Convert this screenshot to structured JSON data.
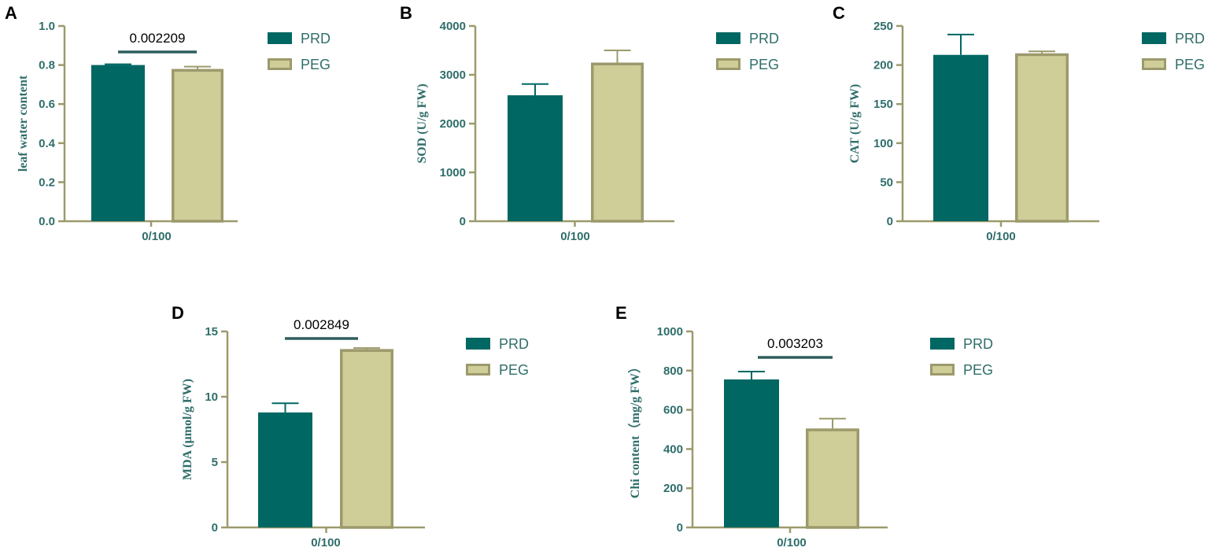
{
  "colors": {
    "axis": "#9c9a6c",
    "text": "#2f6e6a",
    "prd_fill": "#006763",
    "peg_fill": "#cfcd98",
    "peg_stroke": "#9c9a6c",
    "bracket": "#2f5f5c"
  },
  "chart_data": [
    {
      "panel": "A",
      "type": "bar",
      "ylabel": "leaf water content",
      "categories": [
        "0/100"
      ],
      "ylim": [
        0,
        1.0
      ],
      "yticks": [
        "0.0",
        "0.2",
        "0.4",
        "0.6",
        "0.8",
        "1.0"
      ],
      "series": [
        {
          "name": "PRD",
          "values": [
            0.8
          ],
          "errors": [
            0.004
          ]
        },
        {
          "name": "PEG",
          "values": [
            0.78
          ],
          "errors": [
            0.012
          ]
        }
      ],
      "significance": "0.002209",
      "legend": [
        "PRD",
        "PEG"
      ]
    },
    {
      "panel": "B",
      "type": "bar",
      "ylabel": "SOD (U/g FW)",
      "categories": [
        "0/100"
      ],
      "ylim": [
        0,
        4000
      ],
      "yticks": [
        "0",
        "1000",
        "2000",
        "3000",
        "4000"
      ],
      "series": [
        {
          "name": "PRD",
          "values": [
            2580
          ],
          "errors": [
            230
          ]
        },
        {
          "name": "PEG",
          "values": [
            3250
          ],
          "errors": [
            250
          ]
        }
      ],
      "significance": "",
      "legend": [
        "PRD",
        "PEG"
      ]
    },
    {
      "panel": "C",
      "type": "bar",
      "ylabel": "CAT (U/g FW)",
      "categories": [
        "0/100"
      ],
      "ylim": [
        0,
        250
      ],
      "yticks": [
        "0",
        "50",
        "100",
        "150",
        "200",
        "250"
      ],
      "series": [
        {
          "name": "PRD",
          "values": [
            213
          ],
          "errors": [
            26
          ]
        },
        {
          "name": "PEG",
          "values": [
            215
          ],
          "errors": [
            2.5
          ]
        }
      ],
      "significance": "",
      "legend": [
        "PRD",
        "PEG"
      ]
    },
    {
      "panel": "D",
      "type": "bar",
      "ylabel": "MDA (μmol/g FW)",
      "categories": [
        "0/100"
      ],
      "ylim": [
        0,
        15
      ],
      "yticks": [
        "0",
        "5",
        "10",
        "15"
      ],
      "series": [
        {
          "name": "PRD",
          "values": [
            8.8
          ],
          "errors": [
            0.7
          ]
        },
        {
          "name": "PEG",
          "values": [
            13.65
          ],
          "errors": [
            0.08
          ]
        }
      ],
      "significance": "0.002849",
      "legend": [
        "PRD",
        "PEG"
      ]
    },
    {
      "panel": "E",
      "type": "bar",
      "ylabel": "Chi content（mg/g FW）",
      "categories": [
        "0/100"
      ],
      "ylim": [
        0,
        1000
      ],
      "yticks": [
        "0",
        "200",
        "400",
        "600",
        "800",
        "1000"
      ],
      "series": [
        {
          "name": "PRD",
          "values": [
            755
          ],
          "errors": [
            40
          ]
        },
        {
          "name": "PEG",
          "values": [
            505
          ],
          "errors": [
            50
          ]
        }
      ],
      "significance": "0.003203",
      "legend": [
        "PRD",
        "PEG"
      ]
    }
  ]
}
